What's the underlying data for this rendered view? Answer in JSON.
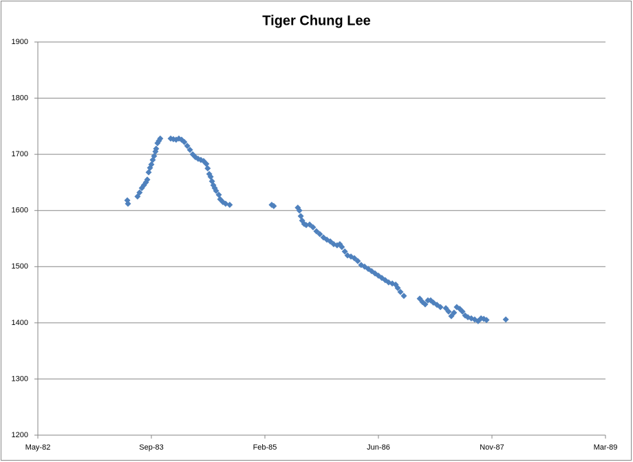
{
  "chart_data": {
    "type": "scatter",
    "title": "Tiger Chung Lee",
    "series": [
      {
        "color": "#4f81bd",
        "x": [
          30481,
          30484,
          30526,
          30535,
          30545,
          30554,
          30563,
          30569,
          30575,
          30581,
          30587,
          30593,
          30599,
          30605,
          30608,
          30614,
          30620,
          30626,
          30672,
          30684,
          30696,
          30708,
          30720,
          30732,
          30745,
          30757,
          30769,
          30781,
          30793,
          30805,
          30817,
          30829,
          30835,
          30842,
          30848,
          30854,
          30860,
          30866,
          30872,
          30884,
          30890,
          30902,
          30914,
          30932,
          31117,
          31126,
          31232,
          31239,
          31245,
          31251,
          31260,
          31269,
          31284,
          31299,
          31314,
          31329,
          31345,
          31360,
          31375,
          31390,
          31405,
          31417,
          31426,
          31439,
          31451,
          31466,
          31481,
          31496,
          31511,
          31526,
          31542,
          31557,
          31572,
          31587,
          31602,
          31617,
          31632,
          31648,
          31663,
          31672,
          31684,
          31699,
          31769,
          31781,
          31793,
          31805,
          31817,
          31829,
          31845,
          31860,
          31884,
          31896,
          31908,
          31920,
          31932,
          31945,
          31957,
          31969,
          31981,
          31996,
          32011,
          32026,
          32039,
          32051,
          32063,
          32148
        ],
        "values": [
          1618,
          1612,
          1625,
          1632,
          1640,
          1645,
          1650,
          1655,
          1668,
          1676,
          1682,
          1690,
          1697,
          1705,
          1710,
          1720,
          1724,
          1728,
          1728,
          1727,
          1726,
          1728,
          1726,
          1722,
          1715,
          1708,
          1700,
          1695,
          1692,
          1690,
          1688,
          1683,
          1675,
          1665,
          1660,
          1652,
          1645,
          1640,
          1635,
          1628,
          1620,
          1615,
          1612,
          1610,
          1610,
          1608,
          1605,
          1600,
          1590,
          1582,
          1576,
          1574,
          1575,
          1570,
          1563,
          1558,
          1552,
          1548,
          1545,
          1540,
          1538,
          1540,
          1535,
          1527,
          1520,
          1518,
          1515,
          1510,
          1503,
          1500,
          1496,
          1492,
          1488,
          1484,
          1480,
          1476,
          1472,
          1470,
          1468,
          1462,
          1455,
          1448,
          1443,
          1437,
          1433,
          1440,
          1440,
          1436,
          1432,
          1428,
          1426,
          1420,
          1412,
          1418,
          1428,
          1425,
          1420,
          1413,
          1410,
          1408,
          1406,
          1403,
          1408,
          1407,
          1405,
          1406
        ]
      }
    ],
    "xlim": [
      30087,
      32587
    ],
    "xticks": [
      {
        "value": 30087,
        "label": "May-82"
      },
      {
        "value": 30587,
        "label": "Sep-83"
      },
      {
        "value": 31087,
        "label": "Feb-85"
      },
      {
        "value": 31587,
        "label": "Jun-86"
      },
      {
        "value": 32087,
        "label": "Nov-87"
      },
      {
        "value": 32587,
        "label": "Mar-89"
      }
    ],
    "ylim": [
      1200,
      1900
    ],
    "yticks": [
      1200,
      1300,
      1400,
      1500,
      1600,
      1700,
      1800,
      1900
    ],
    "grid": true
  }
}
